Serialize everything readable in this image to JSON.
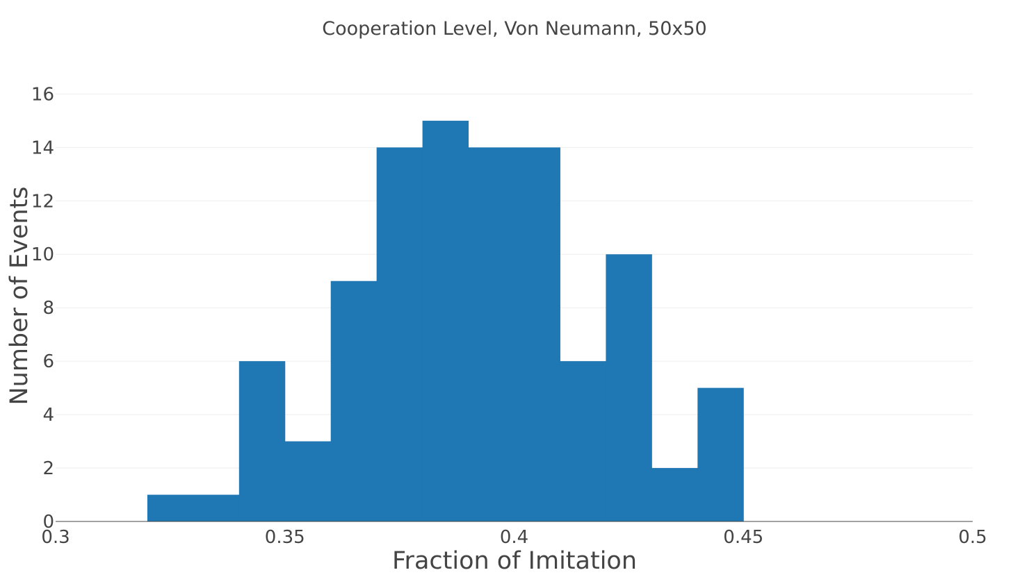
{
  "chart_data": {
    "type": "bar",
    "title": "Cooperation Level, Von Neumann, 50x50",
    "xlabel": "Fraction of Imitation",
    "ylabel": "Number of Events",
    "xlim": [
      0.3,
      0.5
    ],
    "ylim": [
      0,
      16.4
    ],
    "x_ticks": [
      {
        "value": 0.3,
        "label": "0.3"
      },
      {
        "value": 0.35,
        "label": "0.35"
      },
      {
        "value": 0.4,
        "label": "0.4"
      },
      {
        "value": 0.45,
        "label": "0.45"
      },
      {
        "value": 0.5,
        "label": "0.5"
      }
    ],
    "y_ticks": [
      {
        "value": 0,
        "label": "0"
      },
      {
        "value": 2,
        "label": "2"
      },
      {
        "value": 4,
        "label": "4"
      },
      {
        "value": 6,
        "label": "6"
      },
      {
        "value": 8,
        "label": "8"
      },
      {
        "value": 10,
        "label": "10"
      },
      {
        "value": 12,
        "label": "12"
      },
      {
        "value": 14,
        "label": "14"
      },
      {
        "value": 16,
        "label": "16"
      }
    ],
    "bins": [
      {
        "start": 0.32,
        "end": 0.33,
        "count": 1
      },
      {
        "start": 0.33,
        "end": 0.34,
        "count": 1
      },
      {
        "start": 0.34,
        "end": 0.35,
        "count": 6
      },
      {
        "start": 0.35,
        "end": 0.36,
        "count": 3
      },
      {
        "start": 0.36,
        "end": 0.37,
        "count": 9
      },
      {
        "start": 0.37,
        "end": 0.38,
        "count": 14
      },
      {
        "start": 0.38,
        "end": 0.39,
        "count": 15
      },
      {
        "start": 0.39,
        "end": 0.4,
        "count": 14
      },
      {
        "start": 0.4,
        "end": 0.41,
        "count": 14
      },
      {
        "start": 0.41,
        "end": 0.42,
        "count": 6
      },
      {
        "start": 0.42,
        "end": 0.43,
        "count": 10
      },
      {
        "start": 0.43,
        "end": 0.44,
        "count": 2
      },
      {
        "start": 0.44,
        "end": 0.45,
        "count": 5
      }
    ],
    "bar_color": "#1f77b4",
    "grid": true,
    "legend": "none"
  }
}
